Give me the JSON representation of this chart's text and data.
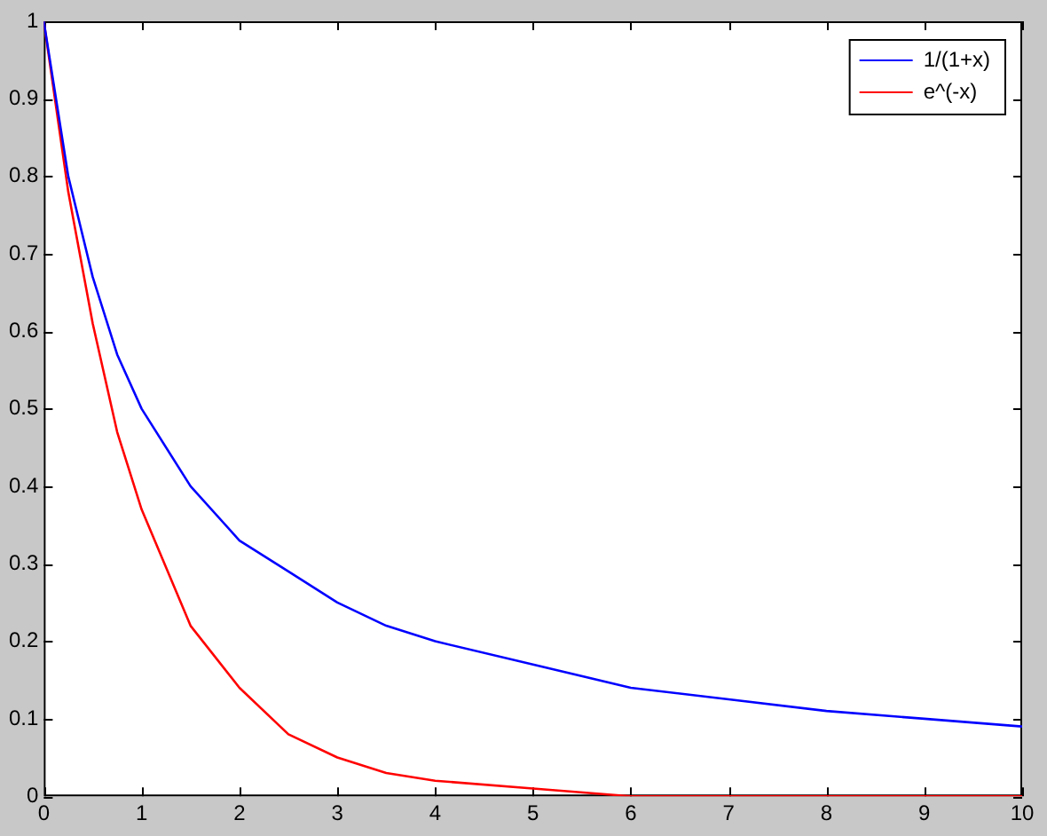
{
  "chart_data": {
    "type": "line",
    "x": [
      0,
      0.25,
      0.5,
      0.75,
      1,
      1.5,
      2,
      2.5,
      3,
      3.5,
      4,
      5,
      6,
      7,
      8,
      9,
      10
    ],
    "series": [
      {
        "name": "1/(1+x)",
        "color": "#0000ff",
        "values": [
          1,
          0.8,
          0.67,
          0.57,
          0.5,
          0.4,
          0.33,
          0.29,
          0.25,
          0.22,
          0.2,
          0.17,
          0.14,
          0.125,
          0.11,
          0.1,
          0.09
        ]
      },
      {
        "name": "e^(-x)",
        "color": "#ff0000",
        "values": [
          1,
          0.78,
          0.61,
          0.47,
          0.37,
          0.22,
          0.14,
          0.08,
          0.05,
          0.03,
          0.02,
          0.01,
          0,
          0,
          0,
          0,
          0
        ]
      }
    ],
    "xlim": [
      0,
      10
    ],
    "xticks": [
      0,
      1,
      2,
      3,
      4,
      5,
      6,
      7,
      8,
      9,
      10
    ],
    "ylim": [
      0,
      1
    ],
    "yticks": [
      0,
      0.1,
      0.2,
      0.3,
      0.4,
      0.5,
      0.6,
      0.7,
      0.8,
      0.9,
      1
    ],
    "grid": false,
    "legend": "top right",
    "marker": "none",
    "line_style": "solid"
  }
}
